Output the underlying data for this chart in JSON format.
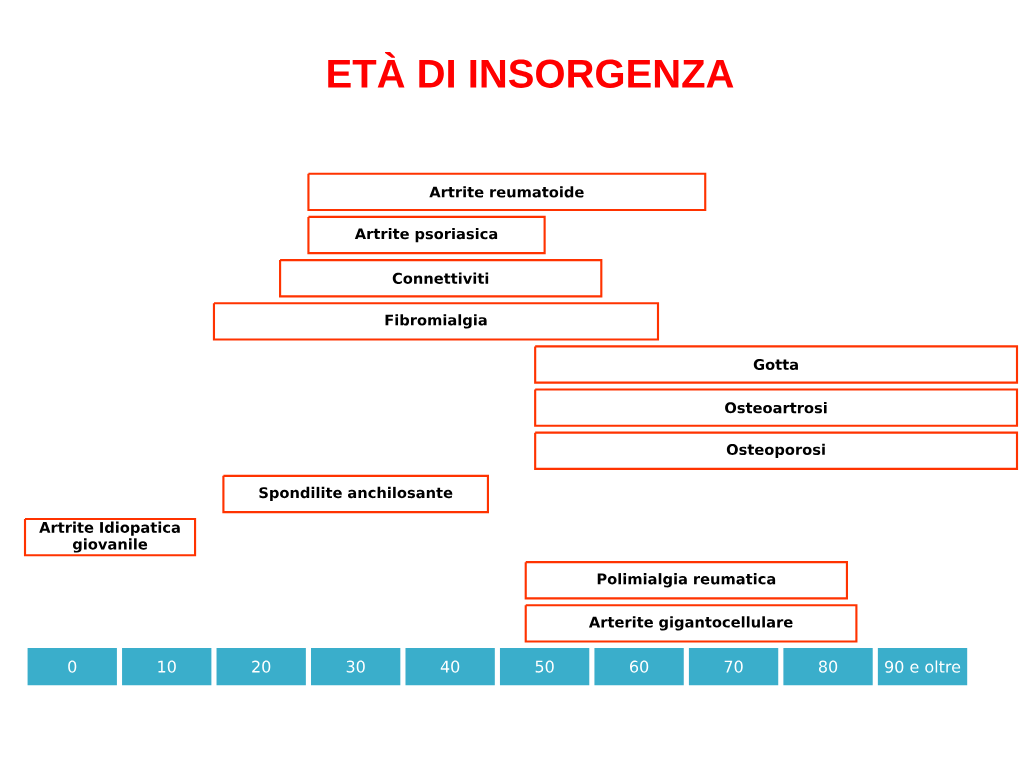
{
  "chart_data": {
    "type": "bar",
    "orientation": "horizontal",
    "title": "ETÀ DI INSORGENZA",
    "categories": [
      "Artrite reumatoide",
      "Artrite psoriasica",
      "Connettiviti",
      "Fibromialgia",
      "Gotta",
      "Osteoartrosi",
      "Osteoporosi",
      "Spondilite anchilosante",
      "Artrite Idiopatica giovanile",
      "Polimialgia reumatica",
      "Arterite gigantocellulare"
    ],
    "base": [
      25,
      25,
      22,
      15,
      49,
      49,
      49,
      16,
      -5,
      48,
      48
    ],
    "values": [
      42,
      25,
      34,
      47,
      51,
      51,
      51,
      28,
      18,
      34,
      35
    ],
    "color": "#ff3300",
    "xlim": [
      -5,
      100
    ],
    "xticks": [
      0,
      10,
      20,
      30,
      40,
      50,
      60,
      70,
      80,
      {
        "value": 90,
        "label": "90 e oltre"
      }
    ],
    "grid": false
  }
}
